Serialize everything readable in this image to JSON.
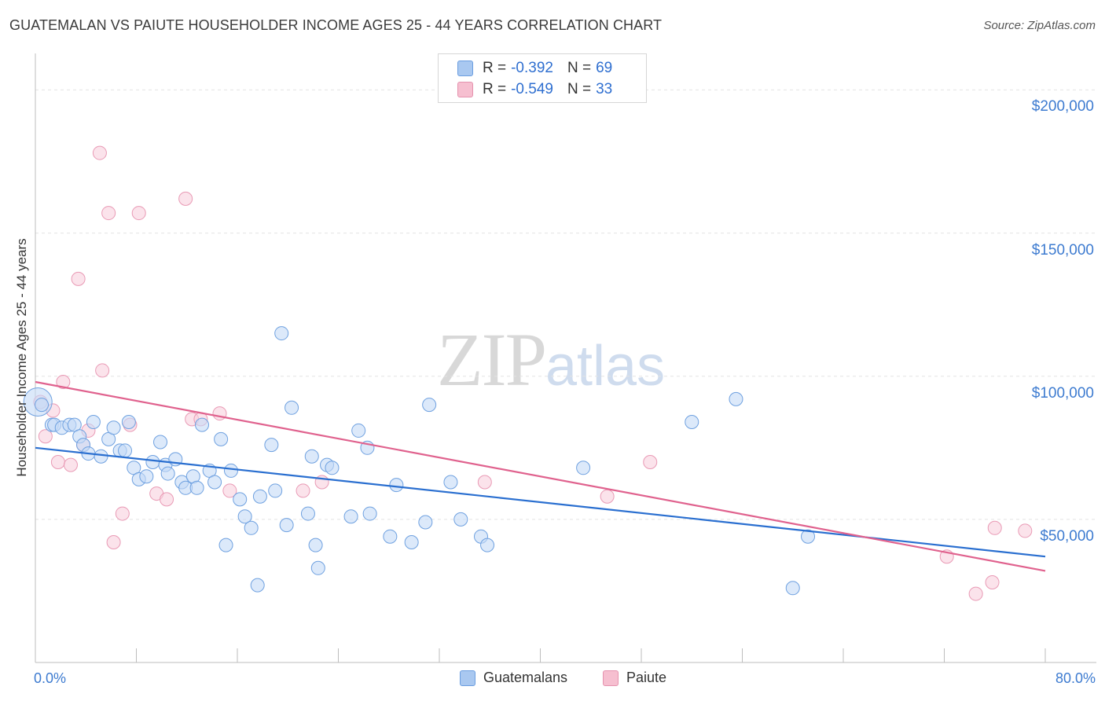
{
  "title": "GUATEMALAN VS PAIUTE HOUSEHOLDER INCOME AGES 25 - 44 YEARS CORRELATION CHART",
  "source": "Source: ZipAtlas.com",
  "watermark": {
    "zip": "ZIP",
    "atlas": "atlas"
  },
  "legend": {
    "r_label": "R =",
    "n_label": "N =",
    "items": [
      {
        "name": "Guatemalans",
        "r": "-0.392",
        "n": "69",
        "color": "#a9c8f0",
        "edge": "#6a9de0"
      },
      {
        "name": "Paiute",
        "r": "-0.549",
        "n": "33",
        "color": "#f6bfd0",
        "edge": "#e592ae"
      }
    ]
  },
  "colors": {
    "blue_point_fill": "#c5daf6",
    "blue_point_edge": "#6fa1e0",
    "blue_line": "#2a6fd0",
    "pink_point_fill": "#f9d0dd",
    "pink_point_edge": "#e99ab5",
    "pink_line": "#e0628e",
    "grid": "#e3e3e3",
    "axis_text": "#3d7bd0"
  },
  "chart_data": {
    "type": "scatter",
    "title": "GUATEMALAN VS PAIUTE HOUSEHOLDER INCOME AGES 25 - 44 YEARS CORRELATION CHART",
    "xlabel": "",
    "ylabel": "Householder Income Ages 25 - 44 years",
    "xlim": [
      0,
      80
    ],
    "ylim": [
      0,
      210000
    ],
    "x_tick_labels": [
      "0.0%",
      "80.0%"
    ],
    "y_ticks": [
      50000,
      100000,
      150000,
      200000
    ],
    "y_tick_labels": [
      "$50,000",
      "$100,000",
      "$150,000",
      "$200,000"
    ],
    "grid": true,
    "series": [
      {
        "name": "Guatemalans",
        "points": [
          [
            0.2,
            91000
          ],
          [
            0.5,
            90000
          ],
          [
            1.3,
            83000
          ],
          [
            1.5,
            83000
          ],
          [
            2.1,
            82000
          ],
          [
            2.7,
            83000
          ],
          [
            3.1,
            83000
          ],
          [
            3.5,
            79000
          ],
          [
            3.8,
            76000
          ],
          [
            4.2,
            73000
          ],
          [
            4.6,
            84000
          ],
          [
            5.2,
            72000
          ],
          [
            5.8,
            78000
          ],
          [
            6.2,
            82000
          ],
          [
            6.7,
            74000
          ],
          [
            7.1,
            74000
          ],
          [
            7.4,
            84000
          ],
          [
            7.8,
            68000
          ],
          [
            8.2,
            64000
          ],
          [
            8.8,
            65000
          ],
          [
            9.3,
            70000
          ],
          [
            9.9,
            77000
          ],
          [
            10.3,
            69000
          ],
          [
            10.5,
            66000
          ],
          [
            11.1,
            71000
          ],
          [
            11.6,
            63000
          ],
          [
            11.9,
            61000
          ],
          [
            12.5,
            65000
          ],
          [
            12.8,
            61000
          ],
          [
            13.2,
            83000
          ],
          [
            13.8,
            67000
          ],
          [
            14.2,
            63000
          ],
          [
            14.7,
            78000
          ],
          [
            15.1,
            41000
          ],
          [
            15.5,
            67000
          ],
          [
            16.2,
            57000
          ],
          [
            16.6,
            51000
          ],
          [
            17.1,
            47000
          ],
          [
            17.6,
            27000
          ],
          [
            17.8,
            58000
          ],
          [
            18.7,
            76000
          ],
          [
            19.0,
            60000
          ],
          [
            19.5,
            115000
          ],
          [
            19.9,
            48000
          ],
          [
            20.3,
            89000
          ],
          [
            21.6,
            52000
          ],
          [
            21.9,
            72000
          ],
          [
            22.2,
            41000
          ],
          [
            22.4,
            33000
          ],
          [
            23.1,
            69000
          ],
          [
            23.5,
            68000
          ],
          [
            25.0,
            51000
          ],
          [
            25.6,
            81000
          ],
          [
            26.3,
            75000
          ],
          [
            26.5,
            52000
          ],
          [
            28.1,
            44000
          ],
          [
            28.6,
            62000
          ],
          [
            29.8,
            42000
          ],
          [
            30.9,
            49000
          ],
          [
            31.2,
            90000
          ],
          [
            32.9,
            63000
          ],
          [
            33.7,
            50000
          ],
          [
            35.3,
            44000
          ],
          [
            35.8,
            41000
          ],
          [
            43.4,
            68000
          ],
          [
            52.0,
            84000
          ],
          [
            55.5,
            92000
          ],
          [
            60.0,
            26000
          ],
          [
            61.2,
            44000
          ]
        ],
        "trend": {
          "x": [
            0,
            80
          ],
          "y": [
            75000,
            37000
          ]
        }
      },
      {
        "name": "Paiute",
        "points": [
          [
            0.4,
            91000
          ],
          [
            0.8,
            79000
          ],
          [
            1.4,
            88000
          ],
          [
            1.8,
            70000
          ],
          [
            2.2,
            98000
          ],
          [
            2.8,
            69000
          ],
          [
            3.4,
            134000
          ],
          [
            3.8,
            76000
          ],
          [
            4.2,
            81000
          ],
          [
            5.1,
            178000
          ],
          [
            5.3,
            102000
          ],
          [
            5.8,
            157000
          ],
          [
            6.2,
            42000
          ],
          [
            6.9,
            52000
          ],
          [
            7.5,
            83000
          ],
          [
            8.2,
            157000
          ],
          [
            9.6,
            59000
          ],
          [
            10.4,
            57000
          ],
          [
            11.9,
            162000
          ],
          [
            12.4,
            85000
          ],
          [
            13.1,
            85000
          ],
          [
            14.6,
            87000
          ],
          [
            15.4,
            60000
          ],
          [
            21.2,
            60000
          ],
          [
            22.7,
            63000
          ],
          [
            35.6,
            63000
          ],
          [
            45.3,
            58000
          ],
          [
            48.7,
            70000
          ],
          [
            72.2,
            37000
          ],
          [
            74.5,
            24000
          ],
          [
            75.8,
            28000
          ],
          [
            76.0,
            47000
          ],
          [
            78.4,
            46000
          ]
        ],
        "trend": {
          "x": [
            0,
            80
          ],
          "y": [
            98000,
            32000
          ]
        }
      }
    ]
  }
}
